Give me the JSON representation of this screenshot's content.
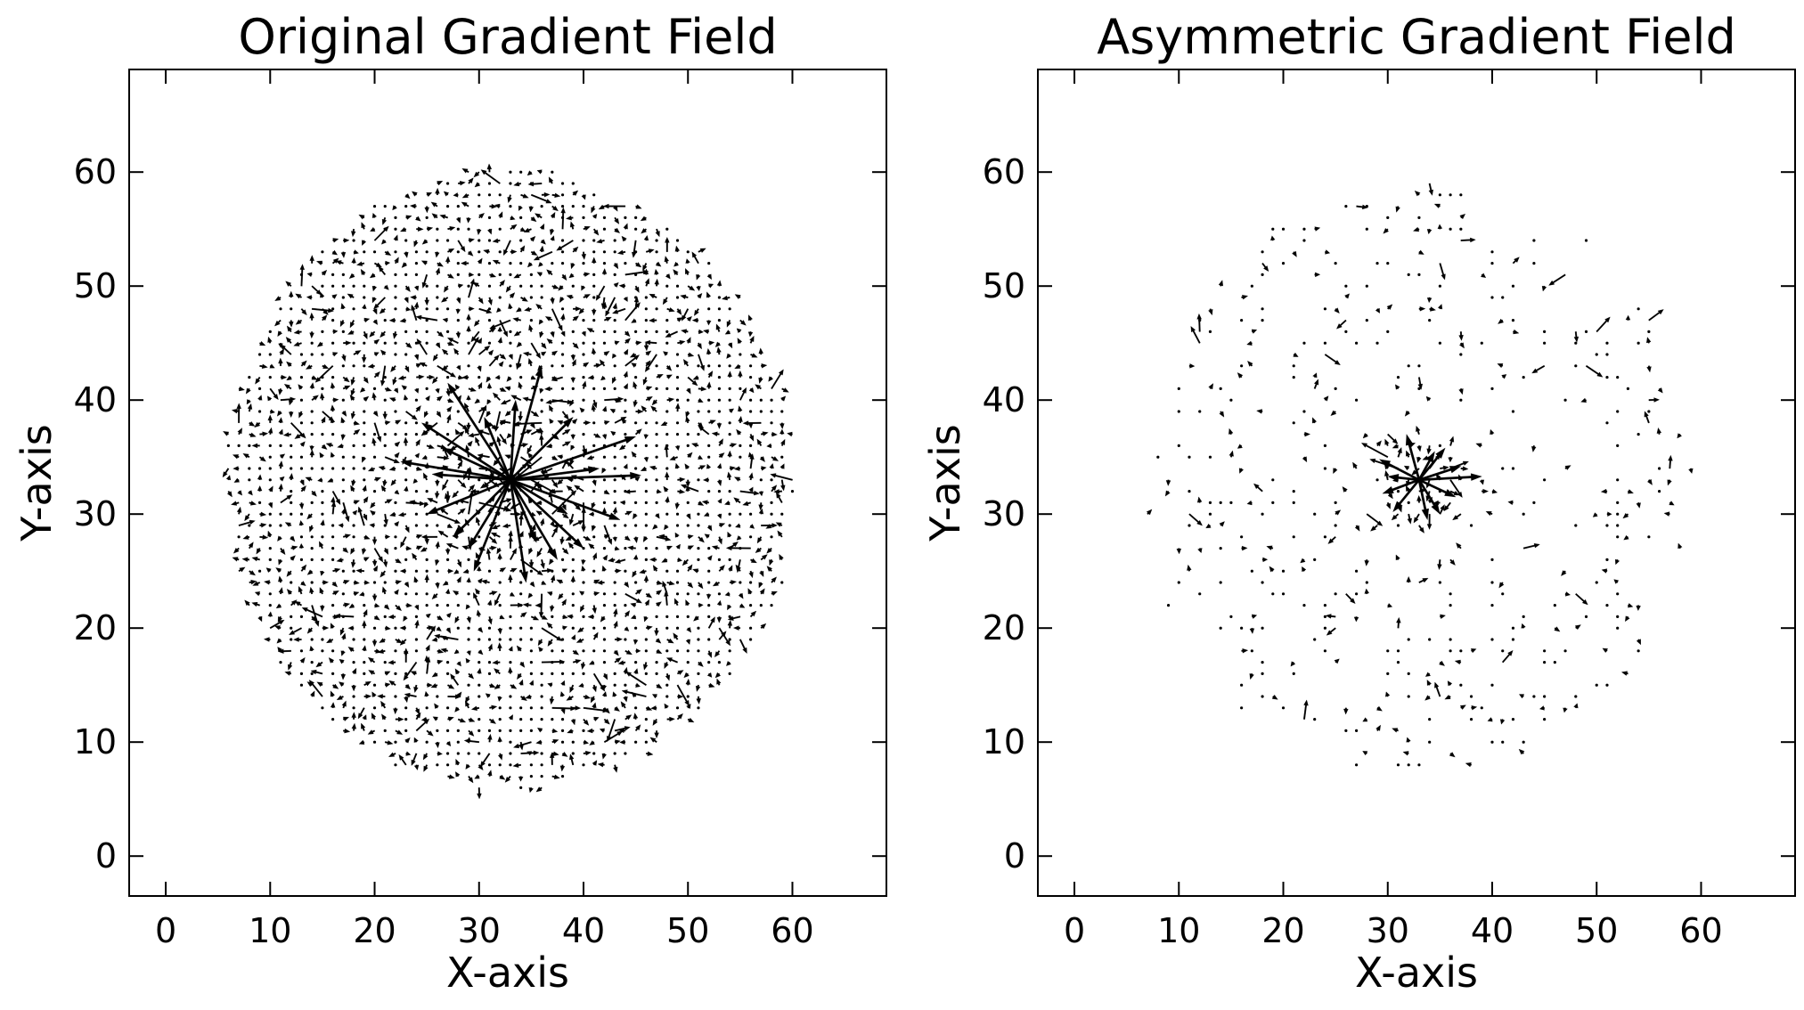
{
  "chart_data": [
    {
      "type": "quiver",
      "title": "Original Gradient Field",
      "xlabel": "X-axis",
      "ylabel": "Y-axis",
      "xlim": [
        -3.5,
        69
      ],
      "ylim": [
        -3.5,
        69
      ],
      "xticks": [
        "0",
        "10",
        "20",
        "30",
        "40",
        "50",
        "60"
      ],
      "yticks": [
        "0",
        "10",
        "20",
        "30",
        "40",
        "50",
        "60"
      ],
      "field": {
        "center": [
          33,
          33
        ],
        "radius": 27,
        "grid_step": 1,
        "sampling": "all",
        "arrow_color": "#000000",
        "dominant_arrows": [
          {
            "x": 33,
            "y": 33,
            "u": -10.5,
            "v": 1.6
          },
          {
            "x": 33,
            "y": 33,
            "u": -6,
            "v": 8.5
          },
          {
            "x": 33,
            "y": 33,
            "u": -8.5,
            "v": 5
          },
          {
            "x": 33,
            "y": 33,
            "u": 3,
            "v": 10
          },
          {
            "x": 33,
            "y": 33,
            "u": 12,
            "v": 3.8
          },
          {
            "x": 33,
            "y": 33,
            "u": 12.5,
            "v": 0.4
          },
          {
            "x": 33,
            "y": 33,
            "u": 10.5,
            "v": -3.5
          },
          {
            "x": 33,
            "y": 33,
            "u": 7,
            "v": -6
          },
          {
            "x": 33,
            "y": 33,
            "u": 1.5,
            "v": -9
          },
          {
            "x": 33,
            "y": 33,
            "u": -3.5,
            "v": -8
          },
          {
            "x": 33,
            "y": 33,
            "u": -8,
            "v": -3
          },
          {
            "x": 33,
            "y": 33,
            "u": -5.5,
            "v": -5
          },
          {
            "x": 33,
            "y": 33,
            "u": 4.5,
            "v": -7
          },
          {
            "x": 33,
            "y": 33,
            "u": -2.5,
            "v": 5.5
          },
          {
            "x": 33,
            "y": 33,
            "u": 6,
            "v": 5.5
          },
          {
            "x": 33,
            "y": 33,
            "u": -6.5,
            "v": 2.8
          },
          {
            "x": 33,
            "y": 33,
            "u": 8.5,
            "v": 1
          },
          {
            "x": 33,
            "y": 33,
            "u": 0.5,
            "v": 7
          },
          {
            "x": 33,
            "y": 33,
            "u": -4,
            "v": -6
          },
          {
            "x": 33,
            "y": 33,
            "u": 5.5,
            "v": -3
          },
          {
            "x": 33,
            "y": 33,
            "u": -7.5,
            "v": 0.5
          },
          {
            "x": 33,
            "y": 33,
            "u": 2.5,
            "v": -5.5
          }
        ]
      }
    },
    {
      "type": "quiver",
      "title": "Asymmetric Gradient Field",
      "xlabel": "X-axis",
      "ylabel": "Y-axis",
      "xlim": [
        -3.5,
        69
      ],
      "ylim": [
        -3.5,
        69
      ],
      "xticks": [
        "0",
        "10",
        "20",
        "30",
        "40",
        "50",
        "60"
      ],
      "yticks": [
        "0",
        "10",
        "20",
        "30",
        "40",
        "50",
        "60"
      ],
      "field": {
        "center": [
          33,
          33
        ],
        "radius": 26,
        "grid_step": 1,
        "sampling": "sparse",
        "arrow_color": "#000000",
        "dominant_arrows": [
          {
            "x": 33,
            "y": 33,
            "u": 6,
            "v": 0.3
          },
          {
            "x": 33,
            "y": 33,
            "u": -3.8,
            "v": 1.8
          },
          {
            "x": 33,
            "y": 33,
            "u": -1.2,
            "v": 4
          },
          {
            "x": 33,
            "y": 33,
            "u": 2.5,
            "v": 2.8
          },
          {
            "x": 33,
            "y": 33,
            "u": 4,
            "v": 1.2
          },
          {
            "x": 33,
            "y": 33,
            "u": 3.5,
            "v": -1.5
          },
          {
            "x": 33,
            "y": 33,
            "u": 0.8,
            "v": -3.5
          },
          {
            "x": 33,
            "y": 33,
            "u": -2.5,
            "v": -2.8
          },
          {
            "x": 33,
            "y": 33,
            "u": -3.5,
            "v": -1.2
          },
          {
            "x": 33,
            "y": 33,
            "u": 2,
            "v": -3
          },
          {
            "x": 33,
            "y": 33,
            "u": -3,
            "v": 0.3
          },
          {
            "x": 33,
            "y": 33,
            "u": 1.5,
            "v": 2.5
          }
        ]
      }
    }
  ]
}
